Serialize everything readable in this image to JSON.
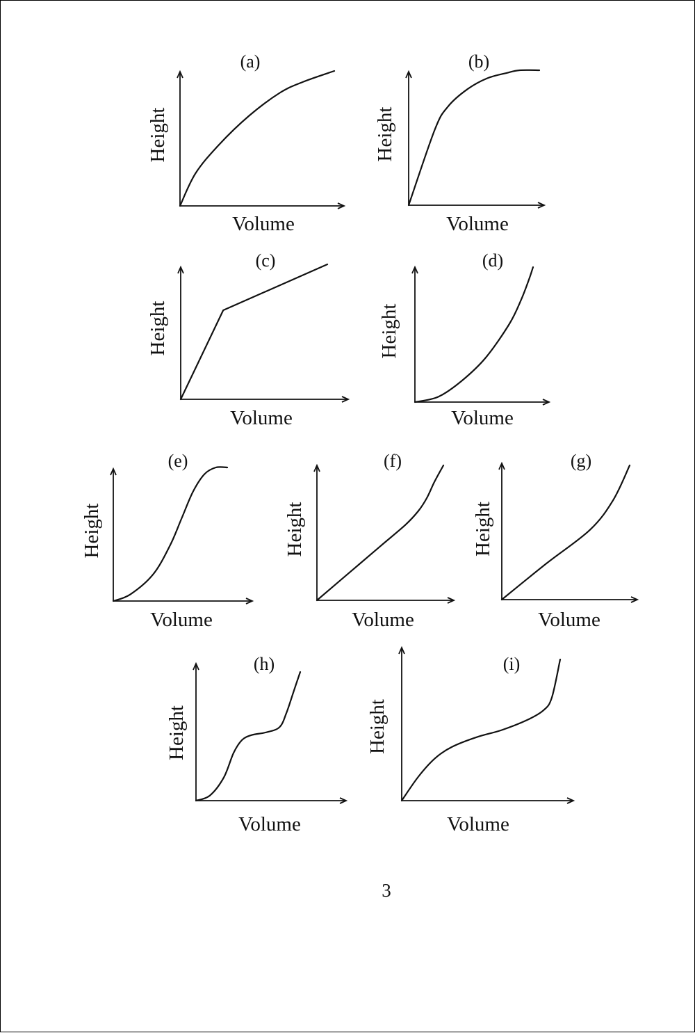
{
  "page": {
    "number": "3"
  },
  "chart_data": [
    {
      "type": "line",
      "panel": "(a)",
      "xlabel": "Volume",
      "ylabel": "Height",
      "x": [
        0,
        0.1,
        0.25,
        0.45,
        0.65,
        0.8,
        1.0
      ],
      "y": [
        0,
        0.24,
        0.45,
        0.67,
        0.84,
        0.92,
        1.0
      ]
    },
    {
      "type": "line",
      "panel": "(b)",
      "xlabel": "Volume",
      "ylabel": "Height",
      "x": [
        0,
        0.2,
        0.3,
        0.45,
        0.6,
        0.75,
        0.85,
        1.0
      ],
      "y": [
        0,
        0.56,
        0.73,
        0.86,
        0.94,
        0.98,
        1.0,
        1.0
      ]
    },
    {
      "type": "line",
      "panel": "(c)",
      "xlabel": "Volume",
      "ylabel": "Height",
      "x": [
        0,
        0.29,
        1.0
      ],
      "y": [
        0,
        0.66,
        1.0
      ]
    },
    {
      "type": "line",
      "panel": "(d)",
      "xlabel": "Volume",
      "ylabel": "Height",
      "x": [
        0,
        0.2,
        0.4,
        0.6,
        0.8,
        0.9,
        0.97,
        1.0
      ],
      "y": [
        0,
        0.04,
        0.16,
        0.33,
        0.58,
        0.76,
        0.92,
        1.0
      ]
    },
    {
      "type": "line",
      "panel": "(e)",
      "xlabel": "Volume",
      "ylabel": "Height",
      "x": [
        0,
        0.15,
        0.35,
        0.5,
        0.6,
        0.7,
        0.8,
        0.9,
        1.0
      ],
      "y": [
        0,
        0.05,
        0.2,
        0.42,
        0.62,
        0.82,
        0.95,
        1.0,
        1.0
      ]
    },
    {
      "type": "line",
      "panel": "(f)",
      "xlabel": "Volume",
      "ylabel": "Height",
      "x": [
        0,
        0.25,
        0.5,
        0.7,
        0.8,
        0.87,
        0.93,
        1.0
      ],
      "y": [
        0,
        0.2,
        0.4,
        0.56,
        0.66,
        0.76,
        0.88,
        1.0
      ]
    },
    {
      "type": "line",
      "panel": "(g)",
      "xlabel": "Volume",
      "ylabel": "Height",
      "x": [
        0,
        0.35,
        0.69,
        0.87,
        1.0
      ],
      "y": [
        0,
        0.27,
        0.52,
        0.74,
        1.0
      ]
    },
    {
      "type": "line",
      "panel": "(h)",
      "xlabel": "Volume",
      "ylabel": "Height",
      "x": [
        0,
        0.1,
        0.2,
        0.27,
        0.33,
        0.4,
        0.5,
        0.6,
        0.65,
        0.7,
        0.75
      ],
      "y": [
        0,
        0.04,
        0.18,
        0.37,
        0.47,
        0.51,
        0.53,
        0.57,
        0.68,
        0.84,
        1.0
      ]
    },
    {
      "type": "line",
      "panel": "(i)",
      "xlabel": "Volume",
      "ylabel": "Height",
      "x": [
        0,
        0.1,
        0.2,
        0.3,
        0.45,
        0.6,
        0.75,
        0.85,
        0.9,
        0.95
      ],
      "y": [
        0,
        0.17,
        0.3,
        0.38,
        0.45,
        0.5,
        0.57,
        0.64,
        0.73,
        1.0
      ]
    }
  ]
}
